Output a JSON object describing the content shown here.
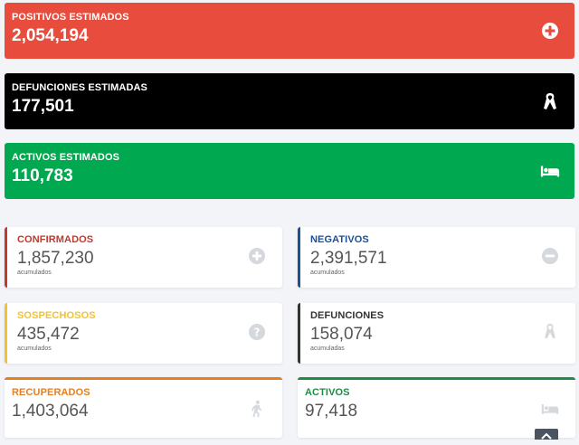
{
  "estimados": [
    {
      "label": "POSITIVOS ESTIMADOS",
      "value": "2,054,194",
      "icon": "plus-circle-icon",
      "color": "#e84c3d"
    },
    {
      "label": "DEFUNCIONES ESTIMADAS",
      "value": "177,501",
      "icon": "ribbon-icon",
      "color": "#000000"
    },
    {
      "label": "ACTIVOS ESTIMADOS",
      "value": "110,783",
      "icon": "bed-icon",
      "color": "#00a94f"
    }
  ],
  "cards": [
    {
      "label": "CONFIRMADOS",
      "value": "1,857,230",
      "sub": "acumulados",
      "color": "#c0392b",
      "icon": "plus-circle-icon"
    },
    {
      "label": "NEGATIVOS",
      "value": "2,391,571",
      "sub": "acumulados",
      "color": "#1a4f99",
      "icon": "minus-circle-icon"
    },
    {
      "label": "SOSPECHOSOS",
      "value": "435,472",
      "sub": "acumulados",
      "color": "#f1c232",
      "icon": "question-circle-icon"
    },
    {
      "label": "DEFUNCIONES",
      "value": "158,074",
      "sub": "acumuladas",
      "color": "#333333",
      "icon": "ribbon-icon"
    },
    {
      "label": "RECUPERADOS",
      "value": "1,403,064",
      "color": "#e67e22",
      "icon": "walking-icon"
    },
    {
      "label": "ACTIVOS",
      "value": "97,418",
      "color": "#1e8c45",
      "icon": "bed-icon"
    }
  ],
  "colors": {
    "icon_gray": "#d5d8dc"
  }
}
